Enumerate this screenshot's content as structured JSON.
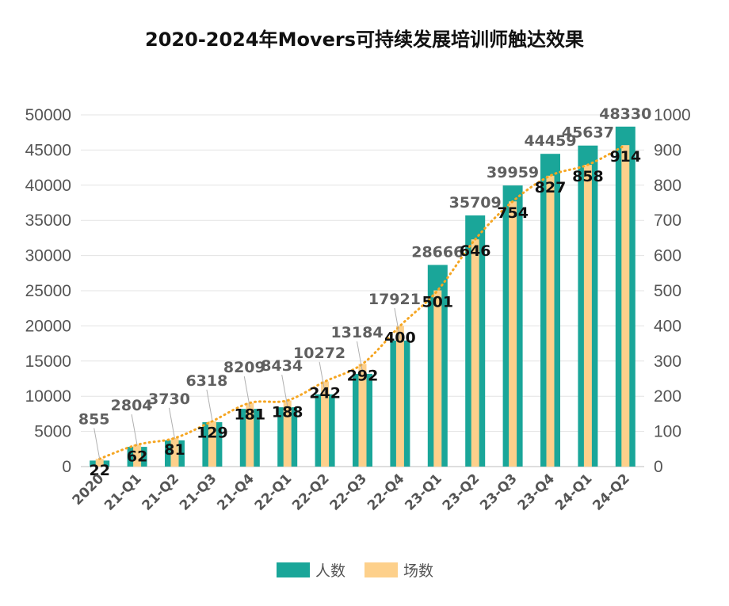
{
  "chart_data": {
    "type": "bar",
    "title": "2020-2024年Movers可持续发展培训师触达效果",
    "categories": [
      "2020",
      "21-Q1",
      "21-Q2",
      "21-Q3",
      "21-Q4",
      "22-Q1",
      "22-Q2",
      "22-Q3",
      "22-Q4",
      "23-Q1",
      "23-Q2",
      "23-Q3",
      "23-Q4",
      "24-Q1",
      "24-Q2"
    ],
    "series": [
      {
        "name": "人数",
        "axis": "left",
        "color": "#1aa699",
        "values": [
          855,
          2804,
          3730,
          6318,
          8209,
          8434,
          10272,
          13184,
          17921,
          28666,
          35709,
          39959,
          44459,
          45637,
          48330
        ]
      },
      {
        "name": "场数",
        "axis": "right",
        "color": "#fdd08b",
        "trendline_color": "#f5a623",
        "values": [
          22,
          62,
          81,
          129,
          181,
          188,
          242,
          292,
          400,
          501,
          646,
          754,
          827,
          858,
          914
        ]
      }
    ],
    "y_left": {
      "min": 0,
      "max": 50000,
      "ticks": [
        "0",
        "5000",
        "10000",
        "15000",
        "20000",
        "25000",
        "30000",
        "35000",
        "40000",
        "45000",
        "50000"
      ]
    },
    "y_right": {
      "min": 0,
      "max": 1000,
      "ticks": [
        "0",
        "100",
        "200",
        "300",
        "400",
        "500",
        "600",
        "700",
        "800",
        "900",
        "1000"
      ]
    },
    "legend": {
      "position": "bottom-center",
      "items": [
        "人数",
        "场数"
      ]
    },
    "grid": true,
    "trendline": "dotted"
  }
}
